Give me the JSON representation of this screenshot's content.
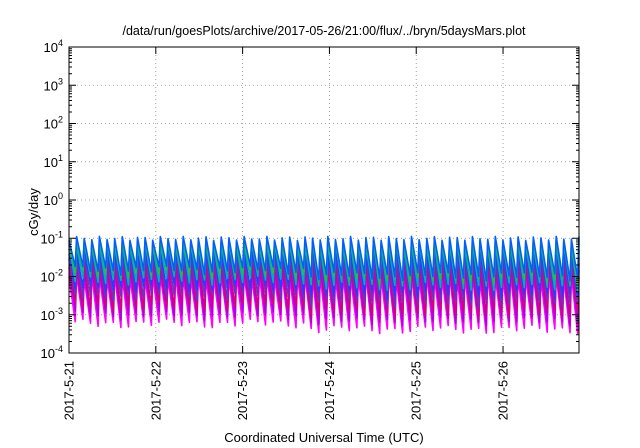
{
  "chart_data": {
    "type": "line",
    "title": "/data/run/goesPlots/archive/2017-05-26/21:00/flux/../bryn/5daysMars.plot",
    "xlabel": "Coordinated Universal Time (UTC)",
    "ylabel": "cGy/day",
    "y_scale": "log",
    "ylim": [
      0.0001,
      10000
    ],
    "y_ticks": [
      {
        "value": 0.0001,
        "base": "10",
        "exp": "-4"
      },
      {
        "value": 0.001,
        "base": "10",
        "exp": "-3"
      },
      {
        "value": 0.01,
        "base": "10",
        "exp": "-2"
      },
      {
        "value": 0.1,
        "base": "10",
        "exp": "-1"
      },
      {
        "value": 1,
        "base": "10",
        "exp": "0"
      },
      {
        "value": 10,
        "base": "10",
        "exp": "1"
      },
      {
        "value": 100,
        "base": "10",
        "exp": "2"
      },
      {
        "value": 1000,
        "base": "10",
        "exp": "3"
      },
      {
        "value": 10000,
        "base": "10",
        "exp": "4"
      }
    ],
    "xlim": [
      "2017-05-21T00:00",
      "2017-05-26T21:00"
    ],
    "x_tick_labels": [
      "2017-5-21",
      "2017-5-22",
      "2017-5-23",
      "2017-5-24",
      "2017-5-25",
      "2017-5-26"
    ],
    "x_tick_dates": [
      "2017-05-21T00:00",
      "2017-05-22T00:00",
      "2017-05-23T00:00",
      "2017-05-24T00:00",
      "2017-05-25T00:00",
      "2017-05-26T00:00"
    ],
    "grid": true,
    "legend": "none",
    "series_colors": [
      "#ff00ff",
      "#b000e0",
      "#d40080",
      "#7030c0",
      "#2040ff",
      "#00b0b0",
      "#20c040",
      "#0060ff"
    ],
    "series": [
      {
        "peak": 0.01,
        "trough": 0.0006
      },
      {
        "peak": 0.016,
        "trough": 0.001
      },
      {
        "peak": 0.025,
        "trough": 0.0016
      },
      {
        "peak": 0.035,
        "trough": 0.003
      },
      {
        "peak": 0.05,
        "trough": 0.005
      },
      {
        "peak": 0.07,
        "trough": 0.008
      },
      {
        "peak": 0.085,
        "trough": 0.012
      },
      {
        "peak": 0.1,
        "trough": 0.015
      }
    ]
  }
}
